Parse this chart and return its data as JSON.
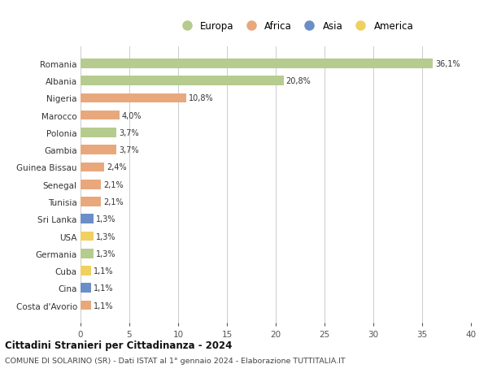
{
  "countries": [
    "Romania",
    "Albania",
    "Nigeria",
    "Marocco",
    "Polonia",
    "Gambia",
    "Guinea Bissau",
    "Senegal",
    "Tunisia",
    "Sri Lanka",
    "USA",
    "Germania",
    "Cuba",
    "Cina",
    "Costa d'Avorio"
  ],
  "values": [
    36.1,
    20.8,
    10.8,
    4.0,
    3.7,
    3.7,
    2.4,
    2.1,
    2.1,
    1.3,
    1.3,
    1.3,
    1.1,
    1.1,
    1.1
  ],
  "labels": [
    "36,1%",
    "20,8%",
    "10,8%",
    "4,0%",
    "3,7%",
    "3,7%",
    "2,4%",
    "2,1%",
    "2,1%",
    "1,3%",
    "1,3%",
    "1,3%",
    "1,1%",
    "1,1%",
    "1,1%"
  ],
  "continents": [
    "Europa",
    "Europa",
    "Africa",
    "Africa",
    "Europa",
    "Africa",
    "Africa",
    "Africa",
    "Africa",
    "Asia",
    "America",
    "Europa",
    "America",
    "Asia",
    "Africa"
  ],
  "continent_colors": {
    "Europa": "#b5cc8e",
    "Africa": "#e8a87c",
    "Asia": "#6b8ec7",
    "America": "#f0d060"
  },
  "xlim": [
    0,
    40
  ],
  "xticks": [
    0,
    5,
    10,
    15,
    20,
    25,
    30,
    35,
    40
  ],
  "title": "Cittadini Stranieri per Cittadinanza - 2024",
  "subtitle": "COMUNE DI SOLARINO (SR) - Dati ISTAT al 1° gennaio 2024 - Elaborazione TUTTITALIA.IT",
  "background_color": "#ffffff",
  "grid_color": "#cccccc",
  "bar_height": 0.55,
  "legend_order": [
    "Europa",
    "Africa",
    "Asia",
    "America"
  ]
}
